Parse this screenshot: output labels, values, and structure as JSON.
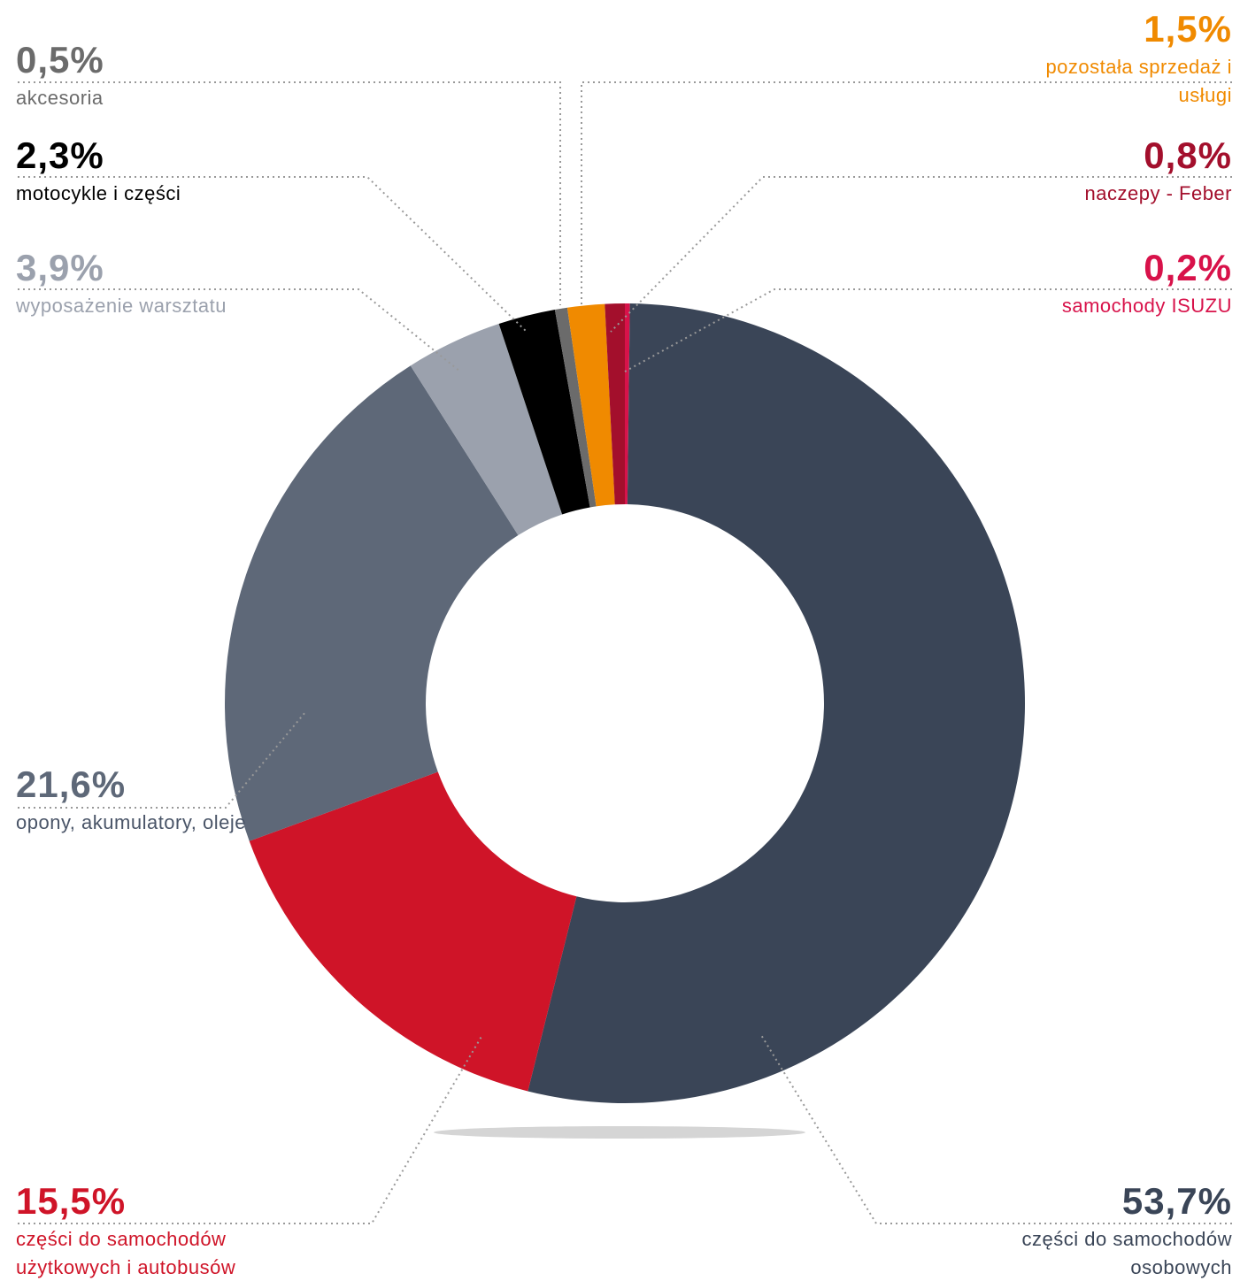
{
  "chart_data": {
    "type": "donut",
    "categories": [
      "samochody ISUZU",
      "części do samochodów osobowych",
      "części do samochodów użytkowych i autobusów",
      "opony, akumulatory, oleje",
      "wyposażenie warsztatu",
      "motocykle i części",
      "akcesoria",
      "pozostała sprzedaż i usługi",
      "naczepy - Feber"
    ],
    "values": [
      0.2,
      53.7,
      15.5,
      21.6,
      3.9,
      2.3,
      0.5,
      1.5,
      0.8
    ],
    "value_labels": [
      "0,2%",
      "53,7%",
      "15,5%",
      "21,6%",
      "3,9%",
      "2,3%",
      "0,5%",
      "1,5%",
      "0,8%"
    ],
    "colors": [
      "#d8124a",
      "#3a4557",
      "#cf1428",
      "#5e6878",
      "#9ba1ad",
      "#000000",
      "#6b6b6b",
      "#f08a00",
      "#a30f2c"
    ]
  }
}
